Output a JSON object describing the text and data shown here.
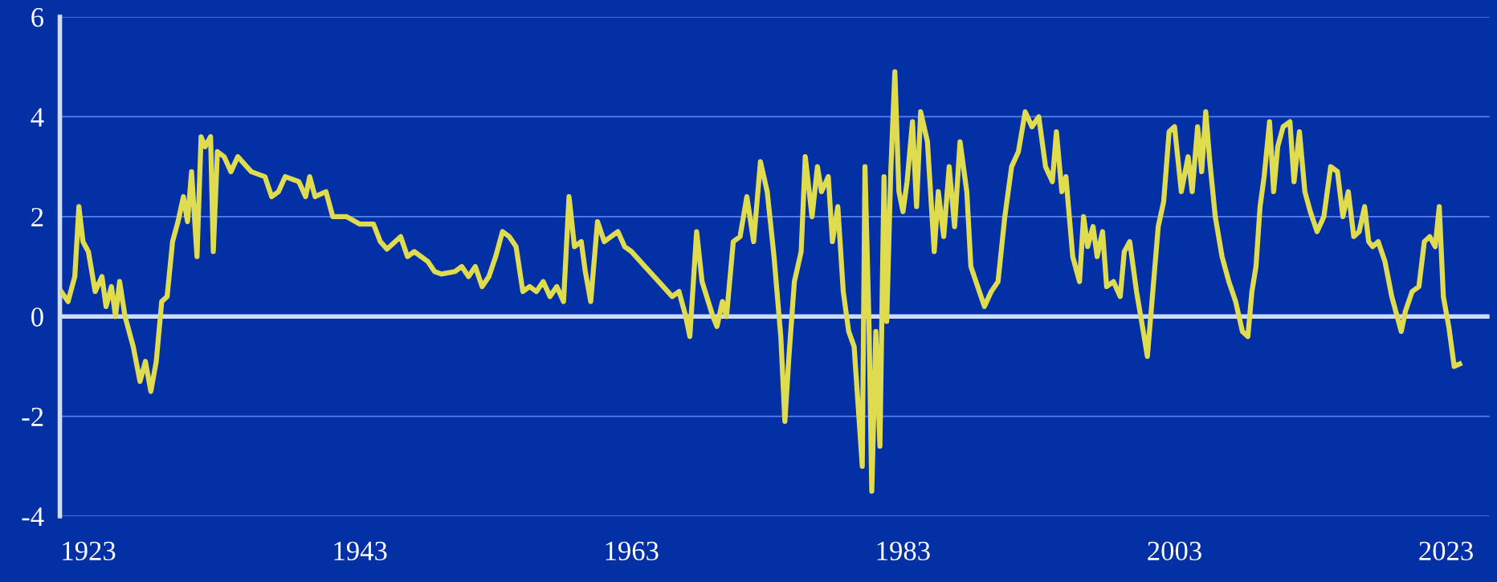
{
  "chart_data": {
    "type": "line",
    "xlim": [
      1920.9,
      2026.2
    ],
    "ylim": [
      -4,
      6
    ],
    "xticks": [
      1923,
      1943,
      1963,
      1983,
      2003,
      2023
    ],
    "yticks": [
      -4,
      -2,
      0,
      2,
      4,
      6
    ],
    "grid": "y",
    "legend": false,
    "marker": "none",
    "line_style": "solid",
    "ref_lines": [
      {
        "axis": "y",
        "value": 0,
        "color": "#d0dcff"
      }
    ],
    "series": [
      {
        "color": "#e0dc50",
        "x": [
          1921,
          1921.5,
          1922,
          1922.3,
          1922.6,
          1923,
          1923.5,
          1924,
          1924.3,
          1924.7,
          1925,
          1925.3,
          1925.7,
          1926.3,
          1926.8,
          1927.2,
          1927.6,
          1928,
          1928.4,
          1928.8,
          1929.2,
          1929.6,
          1930,
          1930.3,
          1930.6,
          1931,
          1931.3,
          1931.6,
          1932,
          1932.2,
          1932.5,
          1933,
          1933.5,
          1934,
          1935,
          1936,
          1936.5,
          1937,
          1937.5,
          1938.5,
          1939,
          1939.3,
          1939.7,
          1940.5,
          1941,
          1942,
          1943,
          1944,
          1944.5,
          1945,
          1946,
          1946.5,
          1947,
          1948,
          1948.5,
          1949,
          1950,
          1950.5,
          1951,
          1951.5,
          1952,
          1952.5,
          1953,
          1953.5,
          1954,
          1954.5,
          1955,
          1955.5,
          1956,
          1956.5,
          1957,
          1957.5,
          1958,
          1958.4,
          1958.8,
          1959.3,
          1959.6,
          1960,
          1960.5,
          1961,
          1962,
          1962.5,
          1963,
          1964,
          1965,
          1966,
          1966.5,
          1967,
          1967.3,
          1967.8,
          1968.2,
          1969,
          1969.3,
          1969.7,
          1970,
          1970.5,
          1971,
          1971.5,
          1972,
          1972.5,
          1973,
          1973.5,
          1974,
          1974.3,
          1974.6,
          1975,
          1975.5,
          1975.8,
          1976.3,
          1976.7,
          1977,
          1977.5,
          1977.8,
          1978.2,
          1978.6,
          1979,
          1979.4,
          1979.7,
          1980,
          1980.2,
          1980.5,
          1980.7,
          1981,
          1981.3,
          1981.6,
          1981.8,
          1982.1,
          1982.4,
          1982.7,
          1983,
          1983.3,
          1983.7,
          1984,
          1984.3,
          1984.8,
          1985.3,
          1985.6,
          1986,
          1986.4,
          1986.8,
          1987.2,
          1987.7,
          1988,
          1988.5,
          1989,
          1989.5,
          1990,
          1990.5,
          1991,
          1991.5,
          1992,
          1992.5,
          1993,
          1993.5,
          1994,
          1994.3,
          1994.7,
          1995,
          1995.5,
          1996,
          1996.3,
          1996.6,
          1997,
          1997.3,
          1997.7,
          1998,
          1998.5,
          1999,
          1999.3,
          1999.7,
          2000.2,
          2000.7,
          2001,
          2001.4,
          2001.8,
          2002.2,
          2002.6,
          2003,
          2003.5,
          2004,
          2004.3,
          2004.7,
          2005,
          2005.3,
          2005.6,
          2006,
          2006.5,
          2007,
          2007.5,
          2008,
          2008.4,
          2008.7,
          2009,
          2009.3,
          2009.6,
          2010,
          2010.3,
          2010.6,
          2011,
          2011.5,
          2011.8,
          2012.2,
          2012.6,
          2013,
          2013.5,
          2014,
          2014.5,
          2015,
          2015.4,
          2015.8,
          2016.2,
          2016.6,
          2017,
          2017.3,
          2017.6,
          2018,
          2018.5,
          2019,
          2019.4,
          2019.7,
          2020,
          2020.5,
          2021,
          2021.4,
          2021.8,
          2022.2,
          2022.5,
          2022.8,
          2023.2,
          2023.6,
          2024
        ],
        "values": [
          0.5,
          0.3,
          0.8,
          2.2,
          1.5,
          1.3,
          0.5,
          0.8,
          0.2,
          0.6,
          0.0,
          0.7,
          0.0,
          -0.6,
          -1.3,
          -0.9,
          -1.5,
          -0.9,
          0.3,
          0.4,
          1.5,
          1.9,
          2.4,
          1.9,
          2.9,
          1.2,
          3.6,
          3.4,
          3.6,
          1.3,
          3.3,
          3.2,
          2.9,
          3.2,
          2.9,
          2.8,
          2.4,
          2.5,
          2.8,
          2.7,
          2.4,
          2.8,
          2.4,
          2.5,
          2.0,
          2.0,
          1.85,
          1.85,
          1.5,
          1.35,
          1.6,
          1.2,
          1.3,
          1.1,
          0.9,
          0.85,
          0.9,
          1.0,
          0.8,
          1.0,
          0.6,
          0.8,
          1.2,
          1.7,
          1.6,
          1.4,
          0.5,
          0.6,
          0.5,
          0.7,
          0.4,
          0.6,
          0.3,
          2.4,
          1.4,
          1.5,
          0.9,
          0.3,
          1.9,
          1.5,
          1.7,
          1.4,
          1.3,
          1.0,
          0.7,
          0.4,
          0.5,
          0.0,
          -0.4,
          1.7,
          0.7,
          0.0,
          -0.2,
          0.3,
          0.0,
          1.5,
          1.6,
          2.4,
          1.5,
          3.1,
          2.5,
          1.2,
          -0.4,
          -2.1,
          -0.8,
          0.7,
          1.3,
          3.2,
          2.0,
          3.0,
          2.5,
          2.8,
          1.5,
          2.2,
          0.5,
          -0.3,
          -0.6,
          -1.8,
          -3.0,
          3.0,
          -0.2,
          -3.5,
          -0.3,
          -2.6,
          2.8,
          -0.1,
          2.9,
          4.9,
          2.5,
          2.1,
          2.7,
          3.9,
          2.2,
          4.1,
          3.5,
          1.3,
          2.5,
          1.6,
          3.0,
          1.8,
          3.5,
          2.5,
          1.0,
          0.6,
          0.2,
          0.5,
          0.7,
          2.0,
          3.0,
          3.3,
          4.1,
          3.8,
          4.0,
          3.0,
          2.7,
          3.7,
          2.5,
          2.8,
          1.2,
          0.7,
          2.0,
          1.4,
          1.8,
          1.2,
          1.7,
          0.6,
          0.7,
          0.4,
          1.3,
          1.5,
          0.5,
          -0.3,
          -0.8,
          0.5,
          1.8,
          2.3,
          3.7,
          3.8,
          2.5,
          3.2,
          2.5,
          3.8,
          2.9,
          4.1,
          3.1,
          2.0,
          1.2,
          0.7,
          0.3,
          -0.3,
          -0.4,
          0.5,
          1.0,
          2.2,
          2.8,
          3.9,
          2.5,
          3.4,
          3.8,
          3.9,
          2.7,
          3.7,
          2.5,
          2.1,
          1.7,
          2.0,
          3.0,
          2.9,
          2.0,
          2.5,
          1.6,
          1.7,
          2.2,
          1.5,
          1.4,
          1.5,
          1.1,
          0.4,
          0.0,
          -0.3,
          0.1,
          0.5,
          0.6,
          1.5,
          1.6,
          1.4,
          2.2,
          0.4,
          -0.2,
          -1.0,
          -0.95
        ]
      }
    ]
  }
}
